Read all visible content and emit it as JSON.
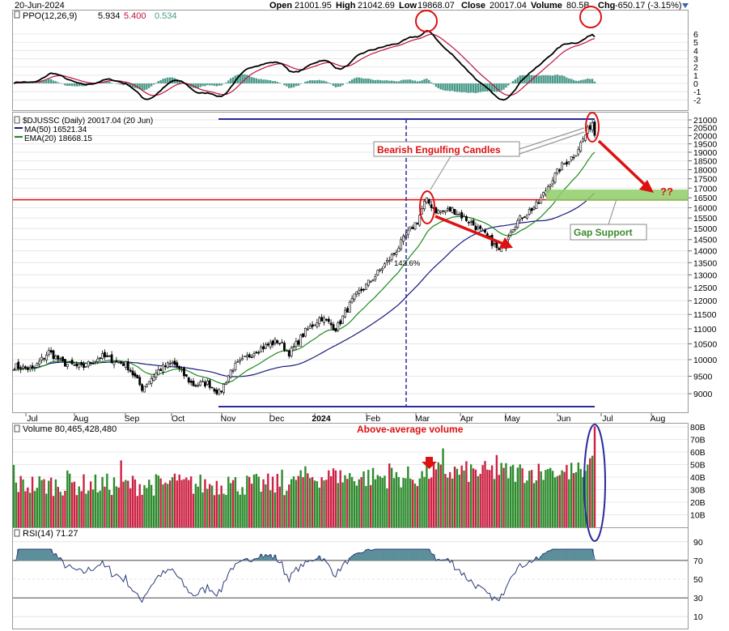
{
  "header": {
    "date": "20-Jun-2024",
    "open_label": "Open",
    "open": "21001.95",
    "high_label": "High",
    "high": "21042.69",
    "low_label": "Low",
    "low": "19868.07",
    "close_label": "Close",
    "close": "20017.04",
    "volume_label": "Volume",
    "volume": "80.5B",
    "chg_label": "Chg",
    "chg": "-650.17 (-3.15%)"
  },
  "ppo_panel": {
    "label": "PPO(12,26,9)",
    "ppo_value": "5.934",
    "signal_value": "5.400",
    "hist_value": "0.534",
    "ticks": [
      "6",
      "5",
      "4",
      "3",
      "2",
      "1",
      "0",
      "-1",
      "-2"
    ]
  },
  "price_panel": {
    "symbol_label": "$DJUSSC (Daily) 20017.04 (20 Jun)",
    "ma_label": "MA(50) 16521.34",
    "ema_label": "EMA(20) 18668.15",
    "ticks": [
      "21000",
      "20500",
      "20000",
      "19500",
      "19000",
      "18500",
      "18000",
      "17500",
      "17000",
      "16500",
      "16000",
      "15500",
      "15000",
      "14500",
      "14000",
      "13500",
      "13000",
      "12500",
      "12000",
      "11500",
      "11000",
      "10500",
      "10000",
      "9500",
      "9000"
    ],
    "annotations": {
      "bearish": "Bearish Engulfing Candles",
      "gap": "Gap Support",
      "question": "??",
      "pct": "143.6%"
    }
  },
  "volume_panel": {
    "label": "Volume 80,465,428,480",
    "annotation": "Above-average volume",
    "ticks": [
      "80B",
      "70B",
      "60B",
      "50B",
      "40B",
      "30B",
      "20B",
      "10B"
    ]
  },
  "rsi_panel": {
    "label": "RSI(14) 71.27",
    "ticks": [
      "90",
      "70",
      "50",
      "30",
      "10"
    ]
  },
  "x_axis": {
    "months": [
      "Jul",
      "Aug",
      "Sep",
      "Oct",
      "Nov",
      "Dec",
      "2024",
      "Feb",
      "Mar",
      "Apr",
      "May",
      "Jun",
      "Jul",
      "Aug"
    ]
  },
  "colors": {
    "up": "#2e8b2e",
    "down": "#cc2244",
    "annotation_red": "#dd1111",
    "ma50": "#1a1a80",
    "ema20": "#1f8a1f",
    "ppo": "#000000",
    "signal": "#c0103a",
    "hist": "#4a9a8a",
    "gap_zone": "#8fce6a",
    "level_line": "#e01010",
    "marker_blue": "#2a2aa0",
    "rsi_fill": "#5c8f9a"
  },
  "chart_data": {
    "type": "line",
    "title": "$DJUSSC (Daily) 20017.04 (20 Jun)",
    "x": [
      "2023-07",
      "2023-08",
      "2023-09",
      "2023-10",
      "2023-11",
      "2023-12",
      "2024-01",
      "2024-02",
      "2024-03",
      "2024-04",
      "2024-05",
      "2024-06"
    ],
    "series": [
      {
        "name": "$DJUSSC",
        "values": [
          9900,
          10200,
          9800,
          9100,
          9200,
          10400,
          11400,
          12700,
          15900,
          15600,
          15300,
          20017
        ]
      },
      {
        "name": "MA(50)",
        "values": [
          9850,
          9950,
          9900,
          9600,
          9250,
          9700,
          10500,
          11600,
          13000,
          14400,
          15200,
          16521
        ]
      },
      {
        "name": "EMA(20)",
        "values": [
          9900,
          10050,
          9850,
          9300,
          9150,
          10100,
          11100,
          12300,
          14600,
          15500,
          15400,
          18668
        ]
      }
    ],
    "ylim": [
      8800,
      21200
    ],
    "volume_ylim": [
      0,
      85
    ],
    "rsi_ylim": [
      0,
      100
    ],
    "ppo_ylim": [
      -2.6,
      7
    ]
  }
}
